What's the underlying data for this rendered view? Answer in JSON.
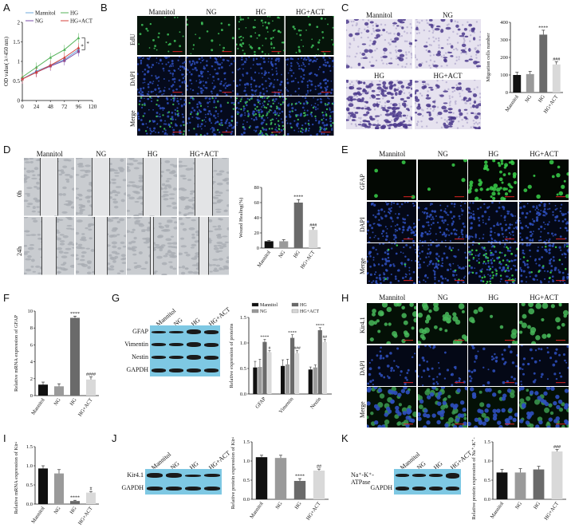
{
  "panels": [
    "A",
    "B",
    "C",
    "D",
    "E",
    "F",
    "G",
    "H",
    "I",
    "J",
    "K"
  ],
  "colors": {
    "mannitol": "#6fa8dc",
    "ng": "#7b4ea8",
    "hg": "#54b35a",
    "hgact": "#d4413b",
    "bar_black": "#111111",
    "bar_gray": "#9a9a9a",
    "bar_dark": "#6a6a6a",
    "bar_light": "#d9d9d9",
    "edu_green": "#3ec25a",
    "dapi_blue": "#2f50c0",
    "wb_bg": "#7ec8e3"
  },
  "groups": [
    "Mannitol",
    "NG",
    "HG",
    "HG+ACT"
  ],
  "A": {
    "chart_data": {
      "type": "line",
      "x": [
        0,
        24,
        48,
        72,
        96
      ],
      "xticks": [
        "0",
        "24",
        "48",
        "72",
        "96",
        "120"
      ],
      "yticks": [
        "0",
        "0.5",
        "1",
        "1.5",
        "2"
      ],
      "ylabel": "OD value( λ=450 nm)",
      "ylim": [
        0,
        2
      ],
      "series": [
        {
          "name": "Mannitol",
          "values": [
            0.55,
            0.75,
            0.9,
            1.05,
            1.3
          ]
        },
        {
          "name": "NG",
          "values": [
            0.55,
            0.72,
            0.88,
            1.02,
            1.25
          ]
        },
        {
          "name": "HG",
          "values": [
            0.6,
            0.85,
            1.1,
            1.3,
            1.6
          ]
        },
        {
          "name": "HG+ACT",
          "values": [
            0.55,
            0.72,
            0.9,
            1.1,
            1.35
          ]
        }
      ],
      "annotations": [
        "*",
        "*"
      ]
    }
  },
  "B": {
    "cols": [
      "Mannitol",
      "NG",
      "HG",
      "HG+ACT"
    ],
    "rows": [
      "EdU",
      "DAPI",
      "Merge"
    ]
  },
  "C": {
    "labels": [
      "Mannitol",
      "NG",
      "HG",
      "HG+ACT"
    ],
    "chart_data": {
      "type": "bar",
      "categories": [
        "Mannitol",
        "NG",
        "HG",
        "HG+ACT"
      ],
      "values": [
        100,
        105,
        330,
        160
      ],
      "errors": [
        15,
        15,
        25,
        15
      ],
      "ylabel": "Migration cells number",
      "yticks": [
        "0",
        "100",
        "200",
        "300",
        "400"
      ],
      "ylim": [
        0,
        400
      ],
      "sig": [
        "",
        "",
        "****",
        "###"
      ]
    }
  },
  "D": {
    "cols": [
      "Mannitol",
      "NG",
      "HG",
      "HG+ACT"
    ],
    "rows": [
      "0h",
      "24h"
    ],
    "chart_data": {
      "type": "bar",
      "categories": [
        "Mannitol",
        "NG",
        "HG",
        "HG+ACT"
      ],
      "values": [
        9,
        9,
        60,
        24
      ],
      "errors": [
        1,
        2,
        4,
        3
      ],
      "ylabel": "Wound Healing(%)",
      "yticks": [
        "0",
        "20",
        "40",
        "60",
        "80"
      ],
      "ylim": [
        0,
        80
      ],
      "sig": [
        "",
        "",
        "****",
        "###"
      ]
    }
  },
  "E": {
    "cols": [
      "Mannitol",
      "NG",
      "HG",
      "HG+ACT"
    ],
    "rows": [
      "GFAP",
      "DAPI",
      "Merge"
    ]
  },
  "F": {
    "chart_data": {
      "type": "bar",
      "categories": [
        "Mannitol",
        "NG",
        "HG",
        "HG+ACT"
      ],
      "values": [
        1.3,
        1.1,
        9.2,
        1.9
      ],
      "errors": [
        0.3,
        0.3,
        0.2,
        0.3
      ],
      "ylabel": "Relative mRNA expression of GFAP",
      "yticks": [
        "0",
        "2",
        "4",
        "6",
        "8",
        "10"
      ],
      "ylim": [
        0,
        10
      ],
      "sig": [
        "",
        "",
        "****",
        "####"
      ]
    }
  },
  "G": {
    "wb_cols": [
      "Mannitol",
      "NG",
      "HG",
      "HG+ACT"
    ],
    "wb_rows": [
      "GFAP",
      "Vimentin",
      "Nestin",
      "GAPDH"
    ],
    "chart_data": {
      "type": "bar",
      "categories": [
        "GFAP",
        "Vimentin",
        "Nestin"
      ],
      "series": [
        {
          "name": "Mannitol",
          "values": [
            0.52,
            0.55,
            0.48
          ],
          "errors": [
            0.12,
            0.12,
            0.05
          ]
        },
        {
          "name": "NG",
          "values": [
            0.53,
            0.58,
            0.52
          ],
          "errors": [
            0.15,
            0.1,
            0.05
          ]
        },
        {
          "name": "HG",
          "values": [
            1.02,
            1.1,
            1.25
          ],
          "errors": [
            0.05,
            0.06,
            0.05
          ]
        },
        {
          "name": "HG+ACT",
          "values": [
            0.82,
            0.8,
            1.02
          ],
          "errors": [
            0.03,
            0.05,
            0.05
          ]
        }
      ],
      "ylabel": "Relative expression of proteins",
      "yticks": [
        "0.0",
        "0.5",
        "1.0",
        "1.5"
      ],
      "ylim": [
        0,
        1.5
      ],
      "sig": [
        [
          "****",
          "#"
        ],
        [
          "****",
          "###"
        ],
        [
          "****",
          "##"
        ]
      ]
    }
  },
  "H": {
    "cols": [
      "Mannitol",
      "NG",
      "HG",
      "HG+ACT"
    ],
    "rows": [
      "Kir4.1",
      "DAPI",
      "Merge"
    ]
  },
  "I": {
    "chart_data": {
      "type": "bar",
      "categories": [
        "Mannitol",
        "NG",
        "HG",
        "HG+ACT"
      ],
      "values": [
        0.93,
        0.8,
        0.08,
        0.3
      ],
      "errors": [
        0.07,
        0.1,
        0.02,
        0.03
      ],
      "ylabel": "Relative mRNA expression of Kir4.1",
      "yticks": [
        "0.0",
        "0.5",
        "1.0",
        "1.5"
      ],
      "ylim": [
        0,
        1.5
      ],
      "sig": [
        "",
        "",
        "****",
        "#"
      ]
    }
  },
  "J": {
    "wb_cols": [
      "Mannitol",
      "NG",
      "HG",
      "HG+ACT"
    ],
    "wb_rows": [
      "Kir4.1",
      "GAPDH"
    ],
    "chart_data": {
      "type": "bar",
      "categories": [
        "Mannitol",
        "NG",
        "HG",
        "HG+ACT"
      ],
      "values": [
        1.1,
        1.08,
        0.48,
        0.75
      ],
      "errors": [
        0.05,
        0.07,
        0.06,
        0.04
      ],
      "ylabel": "Relative protein expression of Kir4.1",
      "yticks": [
        "0.0",
        "0.5",
        "1.0",
        "1.5"
      ],
      "ylim": [
        0,
        1.5
      ],
      "sig": [
        "",
        "",
        "****",
        "##"
      ]
    }
  },
  "K": {
    "wb_cols": [
      "Mannitol",
      "NG",
      "HG",
      "HG+ACT"
    ],
    "wb_rows": [
      "Na⁺-K⁺-ATPase",
      "GAPDH"
    ],
    "chart_data": {
      "type": "bar",
      "categories": [
        "Mannitol",
        "NG",
        "HG",
        "HG+ACT"
      ],
      "values": [
        0.7,
        0.7,
        0.78,
        1.25
      ],
      "errors": [
        0.08,
        0.1,
        0.08,
        0.05
      ],
      "ylabel": "Relative protein expression of Na⁺-K⁺-ATPase",
      "yticks": [
        "0.0",
        "0.5",
        "1.0",
        "1.5"
      ],
      "ylim": [
        0,
        1.5
      ],
      "sig": [
        "",
        "",
        "",
        "###"
      ]
    }
  }
}
